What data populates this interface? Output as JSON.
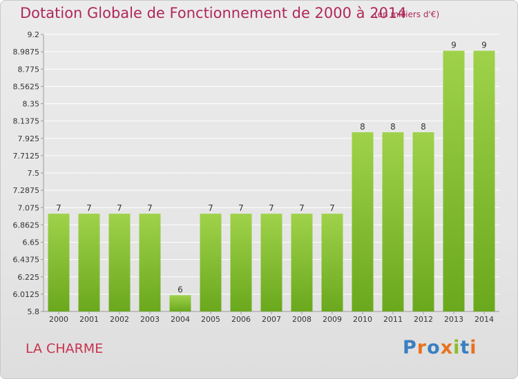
{
  "header": {
    "title": "Dotation Globale de Fonctionnement de 2000 à 2014",
    "subtitle": "(en milliers d'€)"
  },
  "footer": {
    "commune": "LA CHARME",
    "logo_text": "Proxiti",
    "logo_colors": [
      "#3a7fc1",
      "#e8731e",
      "#3a7fc1",
      "#e8731e",
      "#8cbd2a",
      "#3a7fc1",
      "#e8731e"
    ]
  },
  "colors": {
    "bar_light": "#9fd24a",
    "bar_dark": "#6aa81d",
    "title": "#b0275a",
    "grid": "#ffffff"
  },
  "chart_data": {
    "type": "bar",
    "title": "Dotation Globale de Fonctionnement de 2000 à 2014",
    "subtitle": "(en milliers d'€)",
    "xlabel": "",
    "ylabel": "",
    "categories": [
      "2000",
      "2001",
      "2002",
      "2003",
      "2004",
      "2005",
      "2006",
      "2007",
      "2008",
      "2009",
      "2010",
      "2011",
      "2012",
      "2013",
      "2014"
    ],
    "values": [
      7,
      7,
      7,
      7,
      6,
      7,
      7,
      7,
      7,
      7,
      8,
      8,
      8,
      9,
      9
    ],
    "data_labels": [
      "7",
      "7",
      "7",
      "7",
      "6",
      "7",
      "7",
      "7",
      "7",
      "7",
      "8",
      "8",
      "8",
      "9",
      "9"
    ],
    "ylim": [
      5.8,
      9.2
    ],
    "yticks": [
      5.8,
      6.0125,
      6.225,
      6.4375,
      6.65,
      6.8625,
      7.075,
      7.2875,
      7.5,
      7.7125,
      7.925,
      8.1375,
      8.35,
      8.5625,
      8.775,
      8.9875,
      9.2
    ],
    "ytick_labels": [
      "5.8",
      "6.0125",
      "6.225",
      "6.4375",
      "6.65",
      "6.8625",
      "7.075",
      "7.2875",
      "7.5",
      "7.7125",
      "7.925",
      "8.1375",
      "8.35",
      "8.5625",
      "8.775",
      "8.9875",
      "9.2"
    ],
    "grid": true,
    "legend": "none"
  }
}
